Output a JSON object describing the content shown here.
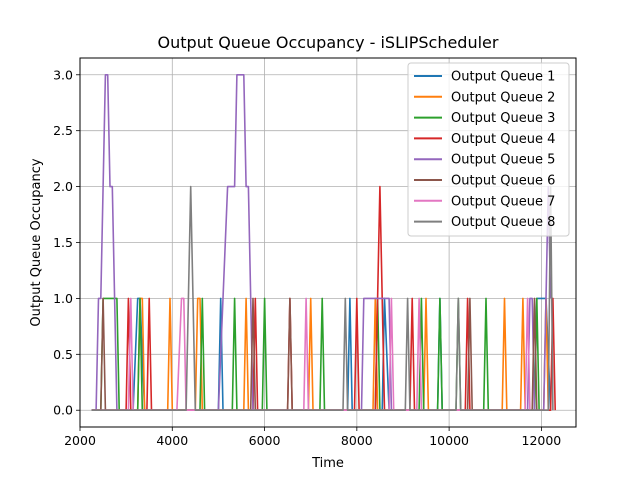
{
  "chart_data": {
    "type": "line",
    "title": "Output Queue Occupancy - iSLIPScheduler",
    "xlabel": "Time",
    "ylabel": "Output Queue Occupancy",
    "xlim": [
      2000,
      12750
    ],
    "ylim": [
      -0.15,
      3.15
    ],
    "xticks": [
      2000,
      4000,
      6000,
      8000,
      10000,
      12000
    ],
    "yticks": [
      0.0,
      0.5,
      1.0,
      1.5,
      2.0,
      2.5,
      3.0
    ],
    "xtick_labels": [
      "2000",
      "4000",
      "6000",
      "8000",
      "10000",
      "12000"
    ],
    "ytick_labels": [
      "0.0",
      "0.5",
      "1.0",
      "1.5",
      "2.0",
      "2.5",
      "3.0"
    ],
    "grid": true,
    "legend_position": "top-right",
    "series": [
      {
        "name": "Output Queue 1",
        "color": "#1f77b4",
        "x": [
          2250,
          3150,
          3250,
          3300,
          3400,
          5000,
          5050,
          5100,
          7800,
          7850,
          7900,
          8550,
          8600,
          8700,
          9750,
          9800,
          9850,
          11850,
          11900,
          12100,
          12200
        ],
        "y": [
          0,
          0,
          1,
          1,
          0,
          0,
          1,
          0,
          0,
          1,
          0,
          0,
          1,
          0,
          0,
          1,
          0,
          0,
          1,
          1,
          0
        ]
      },
      {
        "name": "Output Queue 2",
        "color": "#ff7f0e",
        "x": [
          2250,
          3250,
          3300,
          3350,
          3400,
          3900,
          3950,
          4000,
          4500,
          4550,
          4600,
          4650,
          5550,
          5600,
          5650,
          6950,
          7000,
          7050,
          8350,
          8400,
          8450,
          9450,
          9500,
          9550,
          11150,
          11200,
          11250,
          11550,
          11600,
          11650,
          12050,
          12100,
          12150
        ],
        "y": [
          0,
          0,
          1,
          1,
          0,
          0,
          1,
          0,
          0,
          1,
          1,
          0,
          0,
          1,
          0,
          0,
          1,
          0,
          0,
          1,
          0,
          0,
          1,
          0,
          0,
          1,
          0,
          0,
          1,
          0,
          0,
          1,
          0
        ]
      },
      {
        "name": "Output Queue 3",
        "color": "#2ca02c",
        "x": [
          2250,
          2450,
          2500,
          2550,
          2800,
          2850,
          3250,
          3300,
          3350,
          4600,
          4650,
          4700,
          5300,
          5350,
          5400,
          5950,
          6000,
          6050,
          7200,
          7250,
          7300,
          8400,
          8450,
          8500,
          9350,
          9400,
          9450,
          9750,
          9800,
          9850,
          10150,
          10200,
          10250,
          10750,
          10800,
          10850,
          11850,
          11900,
          11950
        ],
        "y": [
          0,
          0,
          1,
          1,
          1,
          0,
          0,
          1,
          0,
          0,
          1,
          0,
          0,
          1,
          0,
          0,
          1,
          0,
          0,
          1,
          0,
          0,
          1,
          0,
          0,
          1,
          0,
          0,
          1,
          0,
          0,
          1,
          0,
          0,
          1,
          0,
          0,
          1,
          0
        ]
      },
      {
        "name": "Output Queue 4",
        "color": "#d62728",
        "x": [
          2250,
          3000,
          3050,
          3100,
          3450,
          3500,
          3550,
          5750,
          5800,
          5850,
          6500,
          6550,
          6600,
          7950,
          8000,
          8050,
          8400,
          8500,
          8600,
          9150,
          9200,
          9250,
          10350,
          10400,
          10450,
          12200,
          12250,
          12300
        ],
        "y": [
          0,
          0,
          1,
          0,
          0,
          1,
          0,
          0,
          1,
          0,
          0,
          1,
          0,
          0,
          1,
          0,
          0,
          2,
          0,
          0,
          1,
          0,
          0,
          1,
          0,
          0,
          1,
          0
        ]
      },
      {
        "name": "Output Queue 5",
        "color": "#9467bd",
        "x": [
          2250,
          2350,
          2400,
          2450,
          2500,
          2550,
          2600,
          2650,
          2700,
          2750,
          2800,
          5000,
          5100,
          5200,
          5300,
          5350,
          5400,
          5450,
          5500,
          5550,
          5600,
          5650,
          5700,
          5750,
          8100,
          8150,
          8200,
          8250,
          8300,
          8350,
          8400,
          8450,
          8500,
          8550,
          8600,
          8650,
          8700,
          8750,
          8800,
          11700,
          11750,
          11800,
          11850,
          12050,
          12100,
          12150,
          12200
        ],
        "y": [
          0,
          0,
          1,
          1,
          2,
          3,
          3,
          2,
          2,
          1,
          0,
          0,
          1,
          2,
          2,
          2,
          3,
          3,
          3,
          3,
          2,
          2,
          1,
          0,
          0,
          1,
          1,
          1,
          1,
          1,
          1,
          1,
          1,
          1,
          1,
          1,
          1,
          0,
          0,
          0,
          1,
          1,
          0,
          0,
          1,
          2,
          1
        ]
      },
      {
        "name": "Output Queue 6",
        "color": "#8c564b",
        "x": [
          2250,
          2450,
          2500,
          2550,
          5700,
          5750,
          5800,
          6500,
          6550,
          6600,
          10400,
          10450,
          10500,
          11800,
          11850,
          11900
        ],
        "y": [
          0,
          0,
          1,
          0,
          0,
          1,
          0,
          0,
          1,
          0,
          0,
          1,
          0,
          0,
          1,
          0
        ]
      },
      {
        "name": "Output Queue 7",
        "color": "#e377c2",
        "x": [
          2250,
          3050,
          3100,
          3150,
          4100,
          4200,
          4250,
          4300,
          6850,
          6900,
          6950,
          8700,
          8750,
          8800,
          9300,
          9350,
          9400,
          11650,
          11700,
          11750
        ],
        "y": [
          0,
          0,
          1,
          0,
          0,
          1,
          1,
          0,
          0,
          1,
          0,
          0,
          1,
          0,
          0,
          1,
          0,
          0,
          1,
          0
        ]
      },
      {
        "name": "Output Queue 8",
        "color": "#7f7f7f",
        "x": [
          2250,
          4300,
          4350,
          4400,
          4450,
          4500,
          7700,
          7750,
          7800,
          9050,
          9100,
          9150,
          10150,
          10200,
          10250,
          12150,
          12200,
          12250
        ],
        "y": [
          0,
          0,
          1,
          2,
          1,
          0,
          0,
          1,
          0,
          0,
          1,
          0,
          0,
          1,
          0,
          0,
          2,
          0
        ]
      }
    ]
  }
}
